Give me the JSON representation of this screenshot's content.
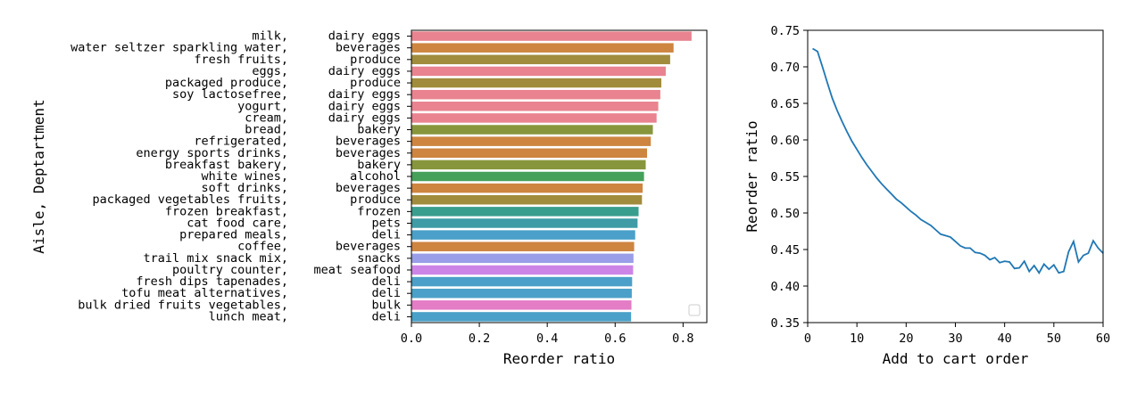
{
  "chart_data": [
    {
      "type": "bar",
      "orientation": "horizontal",
      "ylabel": "Aisle, Deptartment",
      "xlabel": "Reorder ratio",
      "xlim": [
        0,
        0.87
      ],
      "xticks": [
        "0.0",
        "0.2",
        "0.4",
        "0.6",
        "0.8"
      ],
      "legend": "lower-right (empty)",
      "aisles": [
        "milk,",
        "water seltzer sparkling water,",
        "fresh fruits,",
        "eggs,",
        "packaged produce,",
        "soy lactosefree,",
        "yogurt,",
        "cream,",
        "bread,",
        "refrigerated,",
        "energy sports drinks,",
        "breakfast bakery,",
        "white wines,",
        "soft drinks,",
        "packaged vegetables fruits,",
        "frozen breakfast,",
        "cat food care,",
        "prepared meals,",
        "coffee,",
        "trail mix snack mix,",
        "poultry counter,",
        "fresh dips tapenades,",
        "tofu meat alternatives,",
        "bulk dried fruits vegetables,",
        "lunch meat,"
      ],
      "departments": [
        "dairy eggs",
        "beverages",
        "produce",
        "dairy eggs",
        "produce",
        "dairy eggs",
        "dairy eggs",
        "dairy eggs",
        "bakery",
        "beverages",
        "beverages",
        "bakery",
        "alcohol",
        "beverages",
        "produce",
        "frozen",
        "pets",
        "deli",
        "beverages",
        "snacks",
        "meat seafood",
        "deli",
        "deli",
        "bulk",
        "deli"
      ],
      "values": [
        0.825,
        0.772,
        0.762,
        0.749,
        0.736,
        0.733,
        0.727,
        0.722,
        0.711,
        0.705,
        0.694,
        0.69,
        0.685,
        0.681,
        0.679,
        0.669,
        0.666,
        0.659,
        0.656,
        0.654,
        0.653,
        0.65,
        0.649,
        0.648,
        0.647
      ],
      "department_colors": {
        "dairy eggs": "#e8838f",
        "beverages": "#cd8540",
        "produce": "#a08c3c",
        "bakery": "#87963c",
        "alcohol": "#45a05a",
        "frozen": "#3a9e8e",
        "pets": "#3d9ca6",
        "deli": "#4aa0c8",
        "snacks": "#9a9ee8",
        "meat seafood": "#cc85e6",
        "bulk": "#e47cc6"
      }
    },
    {
      "type": "line",
      "xlabel": "Add to cart order",
      "ylabel": "Reorder ratio",
      "xlim": [
        0,
        60
      ],
      "ylim": [
        0.35,
        0.75
      ],
      "xticks": [
        "0",
        "10",
        "20",
        "30",
        "40",
        "50",
        "60"
      ],
      "yticks": [
        "0.35",
        "0.40",
        "0.45",
        "0.50",
        "0.55",
        "0.60",
        "0.65",
        "0.70",
        "0.75"
      ],
      "color": "#1f77b4",
      "x": [
        1,
        2,
        3,
        4,
        5,
        6,
        7,
        8,
        9,
        10,
        11,
        12,
        13,
        14,
        15,
        16,
        17,
        18,
        19,
        20,
        21,
        22,
        23,
        24,
        25,
        26,
        27,
        28,
        29,
        30,
        31,
        32,
        33,
        34,
        35,
        36,
        37,
        38,
        39,
        40,
        41,
        42,
        43,
        44,
        45,
        46,
        47,
        48,
        49,
        50,
        51,
        52,
        53,
        54,
        55,
        56,
        57,
        58,
        59,
        60
      ],
      "y": [
        0.725,
        0.721,
        0.7,
        0.678,
        0.657,
        0.64,
        0.625,
        0.611,
        0.598,
        0.587,
        0.576,
        0.566,
        0.557,
        0.548,
        0.54,
        0.533,
        0.526,
        0.519,
        0.514,
        0.508,
        0.502,
        0.497,
        0.491,
        0.487,
        0.483,
        0.477,
        0.471,
        0.469,
        0.467,
        0.461,
        0.455,
        0.452,
        0.452,
        0.446,
        0.445,
        0.442,
        0.436,
        0.439,
        0.432,
        0.434,
        0.433,
        0.424,
        0.425,
        0.434,
        0.42,
        0.428,
        0.418,
        0.43,
        0.423,
        0.429,
        0.418,
        0.42,
        0.447,
        0.461,
        0.433,
        0.442,
        0.445,
        0.462,
        0.452,
        0.445
      ]
    }
  ]
}
